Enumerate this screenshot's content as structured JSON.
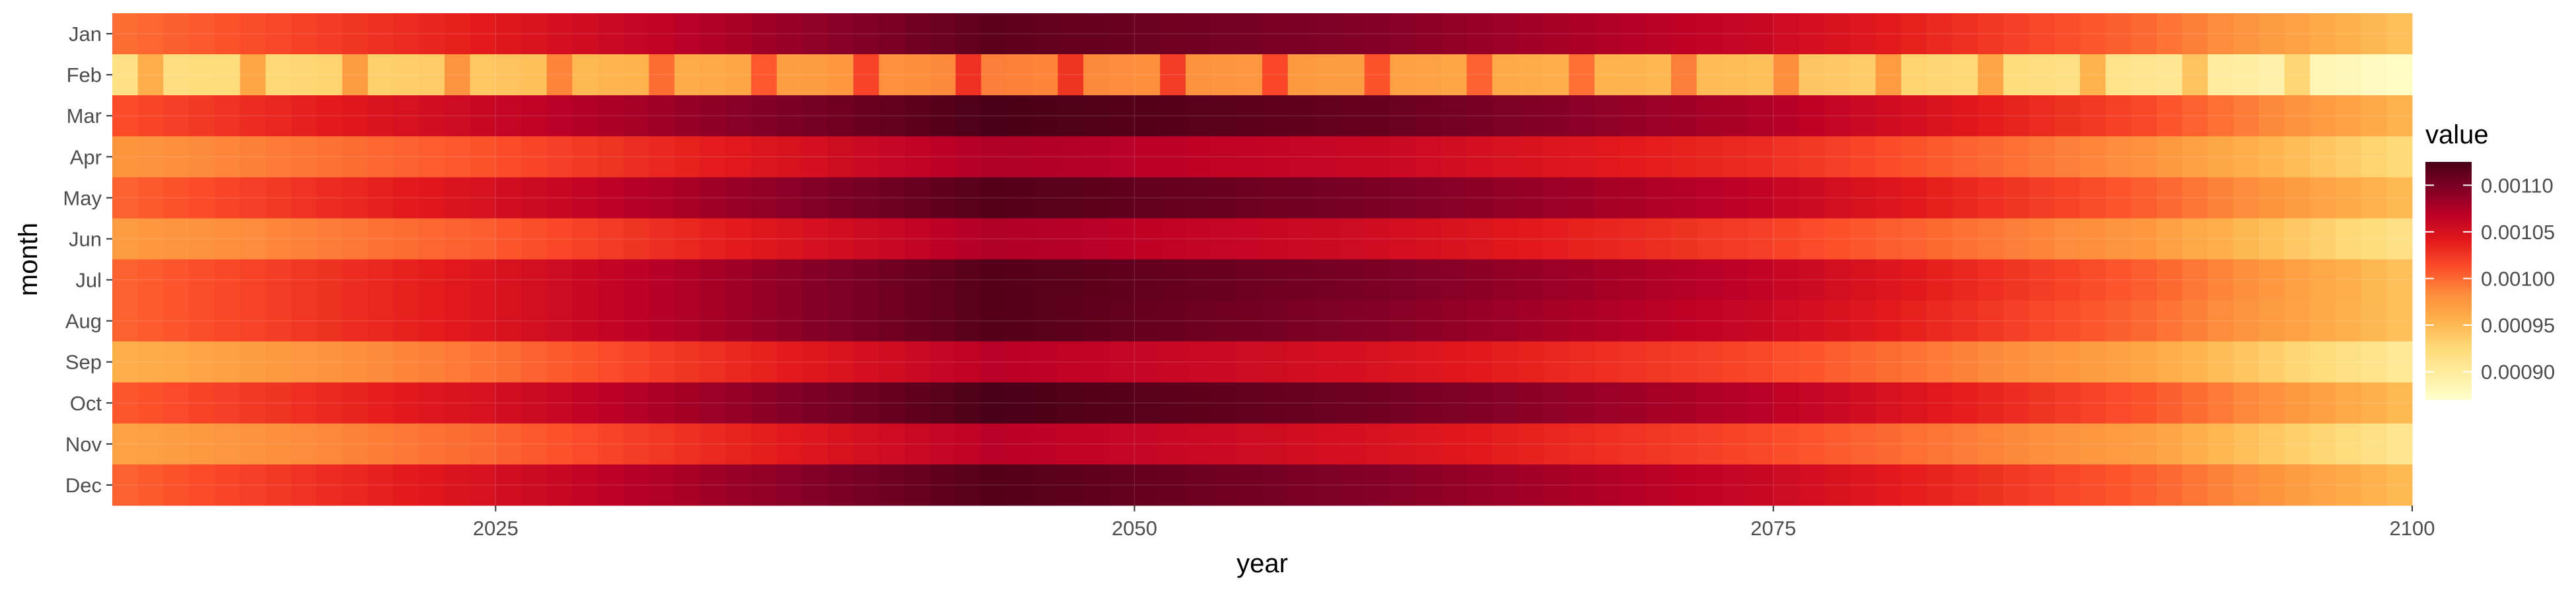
{
  "chart_data": {
    "type": "heatmap",
    "xlabel": "year",
    "ylabel": "month",
    "x_range": [
      2010,
      2100
    ],
    "x_ticks": [
      2025,
      2050,
      2075,
      2100
    ],
    "x_tick_labels": [
      "2025",
      "2050",
      "2075",
      "2100"
    ],
    "y_categories": [
      "Jan",
      "Feb",
      "Mar",
      "Apr",
      "May",
      "Jun",
      "Jul",
      "Aug",
      "Sep",
      "Oct",
      "Nov",
      "Dec"
    ],
    "legend": {
      "title": "value",
      "breaks": [
        0.0009,
        0.00095,
        0.001,
        0.00105,
        0.0011
      ],
      "labels": [
        "0.00090",
        "0.00095",
        "0.00100",
        "0.00105",
        "0.00110"
      ],
      "limits": [
        0.00087,
        0.001125
      ],
      "placement": "right"
    },
    "color_scale": [
      "#FFFFCC",
      "#FFEDA0",
      "#FED976",
      "#FEB24C",
      "#FD8D3C",
      "#FC4E2A",
      "#E31A1C",
      "#BD0026",
      "#800026",
      "#4A0018"
    ],
    "grid": true,
    "background_color": "#EBEBEB",
    "profile_years": [
      2010,
      2025,
      2045,
      2060,
      2075,
      2090,
      2100
    ],
    "month_profiles": [
      {
        "month": "Jan",
        "values": [
          0.000995,
          0.00104,
          0.001115,
          0.001095,
          0.00106,
          0.001,
          0.000945
        ]
      },
      {
        "month": "Feb",
        "values": [
          0.000915,
          0.00094,
          0.00099,
          0.00097,
          0.000945,
          0.00091,
          0.000875
        ]
      },
      {
        "month": "Mar",
        "values": [
          0.00101,
          0.00106,
          0.001125,
          0.00111,
          0.001075,
          0.001015,
          0.000955
        ]
      },
      {
        "month": "Apr",
        "values": [
          0.000975,
          0.00101,
          0.001075,
          0.00106,
          0.00103,
          0.00098,
          0.000925
        ]
      },
      {
        "month": "May",
        "values": [
          0.001,
          0.00105,
          0.00112,
          0.0011,
          0.001065,
          0.001005,
          0.00095
        ]
      },
      {
        "month": "Jun",
        "values": [
          0.00097,
          0.001005,
          0.001075,
          0.001055,
          0.00102,
          0.000975,
          0.000915
        ]
      },
      {
        "month": "Jul",
        "values": [
          0.001,
          0.001045,
          0.00112,
          0.0011,
          0.001065,
          0.001005,
          0.000945
        ]
      },
      {
        "month": "Aug",
        "values": [
          0.001,
          0.001045,
          0.00112,
          0.001095,
          0.00106,
          0.001,
          0.000945
        ]
      },
      {
        "month": "Sep",
        "values": [
          0.000955,
          0.000995,
          0.00107,
          0.00105,
          0.001015,
          0.000965,
          0.000905
        ]
      },
      {
        "month": "Oct",
        "values": [
          0.001005,
          0.00105,
          0.001125,
          0.001105,
          0.00107,
          0.00101,
          0.00095
        ]
      },
      {
        "month": "Nov",
        "values": [
          0.000965,
          0.001,
          0.00107,
          0.00105,
          0.001015,
          0.00097,
          0.00091
        ]
      },
      {
        "month": "Dec",
        "values": [
          0.001,
          0.00105,
          0.00112,
          0.001095,
          0.00106,
          0.001005,
          0.00095
        ]
      }
    ]
  }
}
